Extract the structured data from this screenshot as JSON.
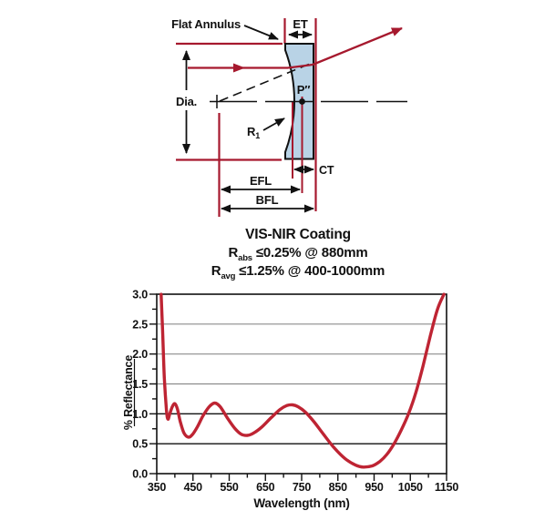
{
  "diagram": {
    "labels": {
      "flat_annulus": "Flat Annulus",
      "et": "ET",
      "dia": "Dia.",
      "p2": "P″",
      "r_main": "R",
      "r_sub": "1",
      "ct": "CT",
      "efl": "EFL",
      "bfl": "BFL"
    },
    "colors": {
      "lens_fill": "#B9D3E6",
      "line_red": "#A6192E",
      "outline": "#111111"
    }
  },
  "coating": {
    "title": "VIS-NIR Coating",
    "line1": {
      "r": "R",
      "sub": "abs",
      "rest": " ≤0.25% @ 880mm"
    },
    "line2": {
      "r": "R",
      "sub": "avg",
      "rest": " ≤1.25% @ 400-1000mm"
    }
  },
  "chart_data": {
    "type": "line",
    "title": "VIS-NIR Coating reflectance curve",
    "xlabel": "Wavelength (nm)",
    "ylabel": "% Reflectance",
    "xlim": [
      350,
      1150
    ],
    "ylim": [
      0.0,
      3.0
    ],
    "x_ticks": [
      350,
      450,
      550,
      650,
      750,
      850,
      950,
      1050,
      1150
    ],
    "x_minor_step": 50,
    "y_ticks": [
      0.0,
      0.5,
      1.0,
      1.5,
      2.0,
      2.5,
      3.0
    ],
    "y_minor_step": 0.25,
    "gridlines_gray": [
      1.5,
      2.0,
      2.5
    ],
    "gridlines_black": [
      0.5,
      1.0
    ],
    "grid": true,
    "legend": "none",
    "series": [
      {
        "name": "% Reflectance",
        "color": "#BE2433",
        "points": [
          [
            362,
            3.0
          ],
          [
            366,
            2.4
          ],
          [
            371,
            1.6
          ],
          [
            377,
            1.05
          ],
          [
            381,
            0.91
          ],
          [
            386,
            1.0
          ],
          [
            393,
            1.12
          ],
          [
            400,
            1.17
          ],
          [
            407,
            1.08
          ],
          [
            415,
            0.87
          ],
          [
            425,
            0.68
          ],
          [
            437,
            0.61
          ],
          [
            448,
            0.65
          ],
          [
            462,
            0.78
          ],
          [
            478,
            0.97
          ],
          [
            495,
            1.12
          ],
          [
            510,
            1.18
          ],
          [
            525,
            1.12
          ],
          [
            545,
            0.93
          ],
          [
            565,
            0.76
          ],
          [
            583,
            0.66
          ],
          [
            600,
            0.64
          ],
          [
            618,
            0.68
          ],
          [
            640,
            0.78
          ],
          [
            665,
            0.93
          ],
          [
            690,
            1.07
          ],
          [
            710,
            1.14
          ],
          [
            725,
            1.15
          ],
          [
            740,
            1.12
          ],
          [
            760,
            1.03
          ],
          [
            785,
            0.86
          ],
          [
            810,
            0.66
          ],
          [
            840,
            0.43
          ],
          [
            870,
            0.25
          ],
          [
            900,
            0.14
          ],
          [
            920,
            0.11
          ],
          [
            945,
            0.13
          ],
          [
            965,
            0.2
          ],
          [
            985,
            0.32
          ],
          [
            1005,
            0.5
          ],
          [
            1025,
            0.73
          ],
          [
            1045,
            1.0
          ],
          [
            1065,
            1.35
          ],
          [
            1085,
            1.8
          ],
          [
            1105,
            2.3
          ],
          [
            1125,
            2.75
          ],
          [
            1143,
            3.0
          ]
        ]
      }
    ]
  }
}
